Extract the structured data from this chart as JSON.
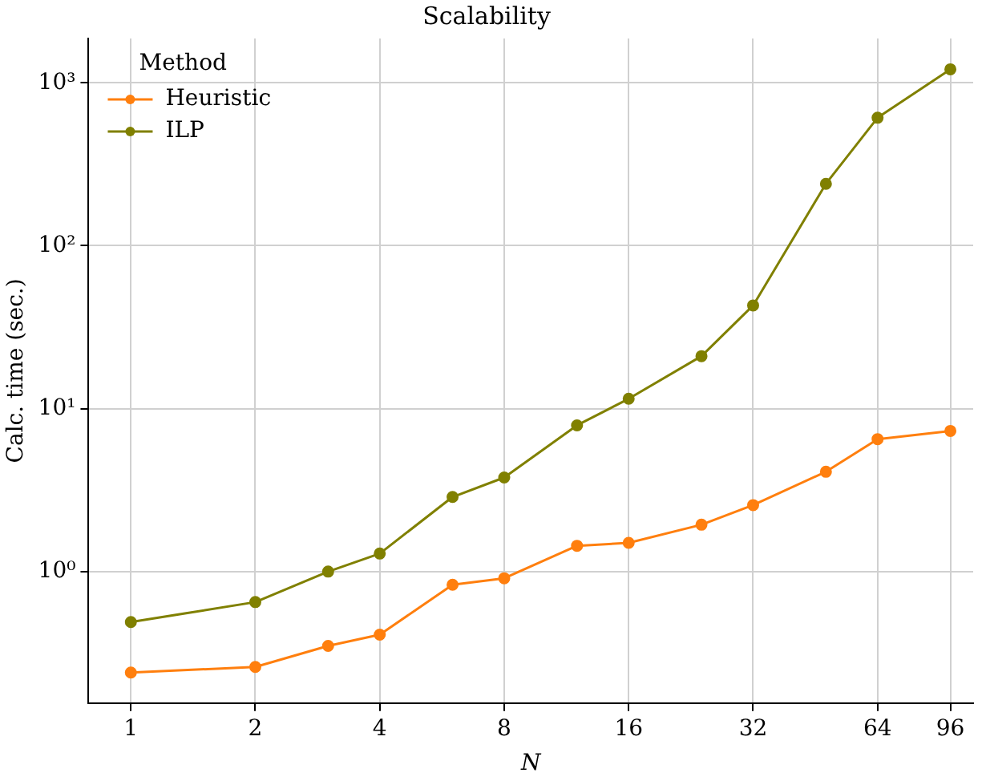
{
  "chart_data": {
    "type": "line",
    "title": "Scalability",
    "xlabel": "N",
    "ylabel": "Calc. time (sec.)",
    "legend_title": "Method",
    "legend": "top left",
    "grid": true,
    "marker": "circle",
    "line_style": "solid",
    "log": "xy",
    "x": [
      1,
      2,
      3,
      4,
      6,
      8,
      12,
      16,
      24,
      32,
      48,
      64,
      96
    ],
    "xlim": [
      0.79,
      109
    ],
    "xticks": [
      1,
      2,
      4,
      8,
      16,
      32,
      64,
      96
    ],
    "ylim": [
      0.156,
      1870
    ],
    "yticks": [
      {
        "value": 1,
        "label": "10⁰"
      },
      {
        "value": 10,
        "label": "10¹"
      },
      {
        "value": 100,
        "label": "10²"
      },
      {
        "value": 1000,
        "label": "10³"
      }
    ],
    "series": [
      {
        "name": "Heuristic",
        "color": "#ff7f0e",
        "values": [
          0.24,
          0.26,
          0.35,
          0.41,
          0.83,
          0.91,
          1.44,
          1.5,
          1.94,
          2.56,
          4.1,
          6.5,
          7.3
        ]
      },
      {
        "name": "ILP",
        "color": "#808000",
        "values": [
          0.49,
          0.65,
          1.0,
          1.29,
          2.87,
          3.78,
          7.9,
          11.5,
          21,
          43,
          240,
          610,
          1210
        ]
      }
    ]
  }
}
